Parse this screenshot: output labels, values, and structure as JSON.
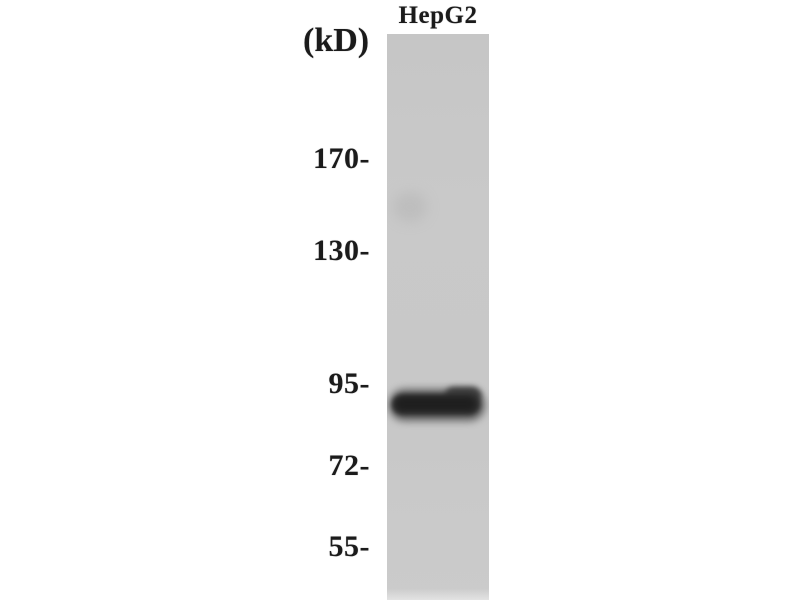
{
  "figure": {
    "type": "western-blot",
    "lane_title": "HepG2",
    "unit_label": "(kD)",
    "markers": [
      "170-",
      "130-",
      "95-",
      "72-",
      "55-"
    ],
    "band": {
      "lane": "HepG2",
      "location": "single band just below the 95 kD marker"
    },
    "colors": {
      "background": "#ffffff",
      "lane_gray": "#c8c8c8",
      "band_dark": "#1f1f1f",
      "text": "#1b1b1b"
    }
  }
}
